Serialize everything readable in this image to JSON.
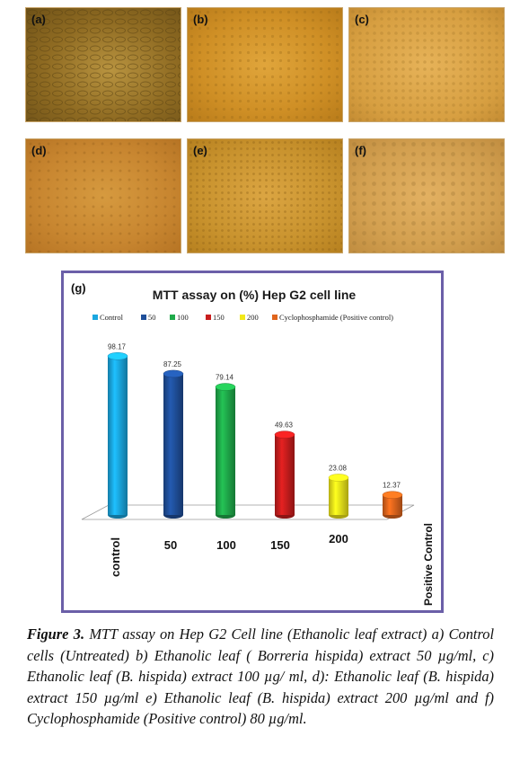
{
  "panels": [
    {
      "label": "(a)"
    },
    {
      "label": "(b)"
    },
    {
      "label": "(c)"
    },
    {
      "label": "(d)"
    },
    {
      "label": "(e)"
    },
    {
      "label": "(f)"
    }
  ],
  "chart_panel_label": "(g)",
  "chart_data": {
    "type": "bar",
    "title": "MTT assay on (%) Hep G2 cell line",
    "categories": [
      "control",
      "50",
      "100",
      "150",
      "200",
      "Positive Control"
    ],
    "legend": [
      "Control",
      "50",
      "100",
      "150",
      "200",
      "Cyclophosphamide (Positive control)"
    ],
    "values": [
      98.17,
      87.25,
      79.14,
      49.63,
      23.08,
      12.37
    ],
    "value_labels": [
      "98.17",
      "87.25",
      "79.14",
      "49.63",
      "23.08",
      "12.37"
    ],
    "colors": [
      "#1aa7e0",
      "#1f4f9a",
      "#1faa4a",
      "#c81d1d",
      "#f2e81a",
      "#e0651c"
    ],
    "ylim": [
      0,
      100
    ],
    "legend_placement": "top",
    "grid": false
  },
  "caption": {
    "figure_label": "Figure 3.",
    "text": " MTT assay on Hep G2 Cell line (Ethanolic leaf extract) a) Control cells (Untreated) b) Ethanolic leaf ( Borreria hispida) extract 50 µg/ml, c) Ethanolic leaf (B. hispida) extract 100 µg/ ml, d): Ethanolic leaf (B. hispida) extract 150 µg/ml e) Ethanolic leaf (B. hispida) extract 200 µg/ml and f) Cyclophosphamide (Positive control) 80  µg/ml."
  }
}
